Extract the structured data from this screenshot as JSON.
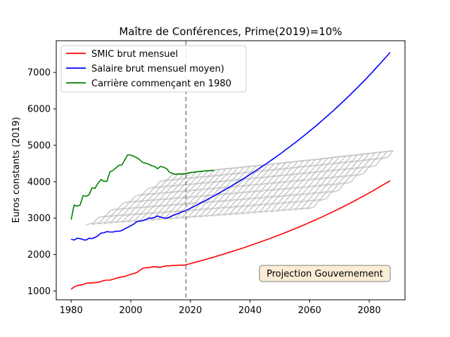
{
  "chart_data": {
    "type": "line",
    "title": "Maître de Conférences, Prime(2019)=10%",
    "xlabel": "",
    "ylabel": "Euros constants (2019)",
    "xlim": [
      1975,
      2092
    ],
    "ylim": [
      760,
      7870
    ],
    "xticks": [
      "1980",
      "2000",
      "2020",
      "2040",
      "2060",
      "2080"
    ],
    "yticks": [
      "1000",
      "2000",
      "3000",
      "4000",
      "5000",
      "6000",
      "7000"
    ],
    "grid": false,
    "legend_position": "top-left",
    "vline": {
      "x": 2018.5,
      "style": "dashed",
      "color": "#808080"
    },
    "annotation": {
      "text": "Projection Gouvernement",
      "x": 2066,
      "y": 1420
    },
    "series": [
      {
        "name": "SMIC brut mensuel",
        "color": "#ff0000",
        "historical": {
          "x": [
            1980,
            1981,
            1982,
            1983,
            1984,
            1985,
            1986,
            1987,
            1988,
            1989,
            1990,
            1991,
            1992,
            1993,
            1994,
            1995,
            1996,
            1997,
            1998,
            1999,
            2000,
            2001,
            2002,
            2003,
            2004,
            2005,
            2006,
            2007,
            2008,
            2009,
            2010,
            2011,
            2012,
            2013,
            2014,
            2015,
            2016,
            2017,
            2018
          ],
          "y": [
            1050,
            1110,
            1150,
            1160,
            1180,
            1210,
            1220,
            1220,
            1230,
            1240,
            1260,
            1290,
            1300,
            1300,
            1320,
            1350,
            1370,
            1390,
            1400,
            1430,
            1460,
            1480,
            1510,
            1570,
            1620,
            1640,
            1640,
            1660,
            1670,
            1660,
            1650,
            1680,
            1690,
            1690,
            1700,
            1700,
            1710,
            1710,
            1710
          ]
        },
        "projection": {
          "start_year": 2018,
          "start_value": 1710,
          "end_year": 2087,
          "end_value": 4030
        }
      },
      {
        "name": "Salaire brut mensuel moyen)",
        "color": "#0000ff",
        "historical": {
          "x": [
            1980,
            1981,
            1982,
            1983,
            1984,
            1985,
            1986,
            1987,
            1988,
            1989,
            1990,
            1991,
            1992,
            1993,
            1994,
            1995,
            1996,
            1997,
            1998,
            1999,
            2000,
            2001,
            2002,
            2003,
            2004,
            2005,
            2006,
            2007,
            2008,
            2009,
            2010,
            2011,
            2012,
            2013,
            2014,
            2015,
            2016,
            2017,
            2018
          ],
          "y": [
            2420,
            2400,
            2450,
            2440,
            2410,
            2400,
            2450,
            2440,
            2470,
            2520,
            2590,
            2600,
            2630,
            2620,
            2620,
            2640,
            2640,
            2660,
            2710,
            2750,
            2790,
            2840,
            2900,
            2920,
            2930,
            2960,
            3000,
            3000,
            3020,
            3060,
            3030,
            3010,
            3000,
            3030,
            3070,
            3100,
            3130,
            3170,
            3190
          ]
        },
        "projection": {
          "start_year": 2018,
          "start_value": 3190,
          "end_year": 2087,
          "end_value": 7550
        }
      },
      {
        "name": "Carrière commençant en 1980",
        "color": "#008000",
        "x": [
          1980,
          1981,
          1982,
          1983,
          1984,
          1985,
          1986,
          1987,
          1988,
          1989,
          1990,
          1991,
          1992,
          1993,
          1994,
          1995,
          1996,
          1997,
          1998,
          1999,
          2000,
          2001,
          2002,
          2003,
          2004,
          2005,
          2006,
          2007,
          2008,
          2009,
          2010,
          2011,
          2012,
          2013,
          2014,
          2015,
          2016,
          2017,
          2018,
          2019,
          2020,
          2021,
          2022,
          2023,
          2024,
          2025,
          2026,
          2027,
          2028
        ],
        "y": [
          2960,
          3360,
          3330,
          3360,
          3620,
          3600,
          3640,
          3830,
          3820,
          3960,
          4060,
          4010,
          4010,
          4270,
          4310,
          4380,
          4450,
          4460,
          4600,
          4740,
          4730,
          4700,
          4660,
          4600,
          4530,
          4510,
          4480,
          4440,
          4420,
          4360,
          4420,
          4400,
          4360,
          4260,
          4230,
          4200,
          4210,
          4210,
          4210,
          4230,
          4250,
          4260,
          4270,
          4280,
          4290,
          4300,
          4300,
          4310,
          4310
        ]
      }
    ],
    "background_careers": {
      "color": "#c8c8c8",
      "start_years": [
        1985,
        1987,
        1989,
        1991,
        1993,
        1995,
        1997,
        1999,
        2001,
        2003,
        2005,
        2007,
        2009,
        2011,
        2013,
        2015,
        2017,
        2019,
        2021,
        2023,
        2025,
        2027,
        2029,
        2031,
        2033,
        2035,
        2037,
        2039,
        2041,
        2043,
        2045,
        2047,
        2049,
        2051,
        2053,
        2055,
        2057,
        2059
      ],
      "start_level_ratio": 0.67,
      "career_length_years": 29,
      "steps": 7,
      "envelope": {
        "start_year": 2017,
        "start_value": 4230,
        "end_year": 2088,
        "end_value": 4850
      }
    }
  }
}
